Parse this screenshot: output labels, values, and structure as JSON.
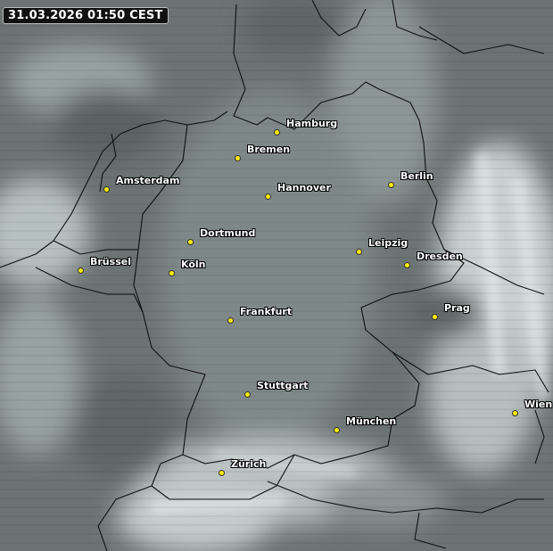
{
  "timestamp": "31.03.2026 01:50 CEST",
  "colors": {
    "city_dot": "#ffee00",
    "border_line": "#111111",
    "label_text": "#ffffff"
  },
  "cities": [
    {
      "name": "Hamburg"
    },
    {
      "name": "Bremen"
    },
    {
      "name": "Amsterdam"
    },
    {
      "name": "Hannover"
    },
    {
      "name": "Berlin"
    },
    {
      "name": "Dortmund"
    },
    {
      "name": "Leipzig"
    },
    {
      "name": "Dresden"
    },
    {
      "name": "Brüssel"
    },
    {
      "name": "Köln"
    },
    {
      "name": "Frankfurt"
    },
    {
      "name": "Prag"
    },
    {
      "name": "Stuttgart"
    },
    {
      "name": "München"
    },
    {
      "name": "Wien"
    },
    {
      "name": "Zürich"
    }
  ]
}
